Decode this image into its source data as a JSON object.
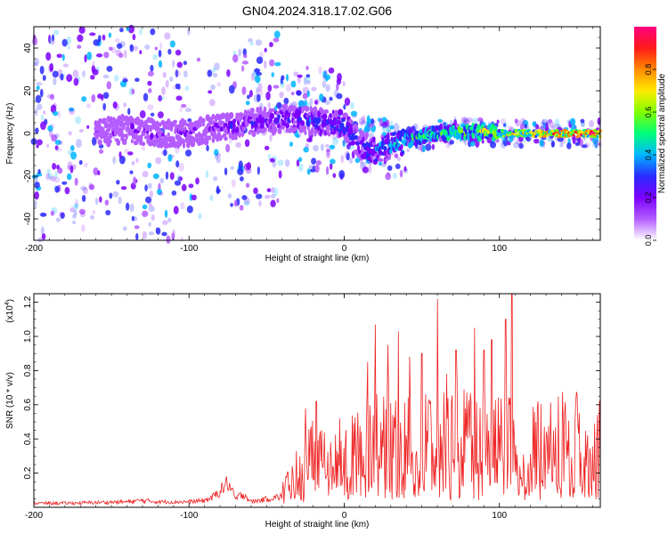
{
  "title": "GN04.2024.318.17.02.G06",
  "colors": {
    "snr_line": "#ee2222",
    "colormap": [
      "#ffffff",
      "#b45cff",
      "#7c00ff",
      "#2a2aff",
      "#00b6ff",
      "#00ff7a",
      "#7fff00",
      "#ffea00",
      "#ff8a00",
      "#ff1a1a",
      "#ff007f"
    ]
  },
  "chart_data": [
    {
      "type": "heatmap",
      "title": "GN04.2024.318.17.02.G06",
      "xlabel": "Height of straight line (km)",
      "ylabel": "Frequency (Hz)",
      "xlim": [
        -200,
        165
      ],
      "ylim": [
        -50,
        50
      ],
      "x_ticks": [
        -200,
        -100,
        0,
        100
      ],
      "x_tick_labels": [
        "-200",
        "-100",
        "0",
        "100"
      ],
      "y_ticks": [
        -40,
        -20,
        0,
        20,
        40
      ],
      "y_tick_labels": [
        "-40",
        "-20",
        "0",
        "20",
        "40"
      ],
      "colorbar": {
        "label": "Normalized spectral amplitude",
        "range": [
          0,
          1
        ],
        "ticks": [
          0.0,
          0.2,
          0.4,
          0.6,
          0.8
        ],
        "tick_labels": [
          "0.0",
          "0.2",
          "0.4",
          "0.6",
          "0.8"
        ]
      },
      "ridge": {
        "x": [
          -160,
          -140,
          -120,
          -100,
          -80,
          -60,
          -40,
          -20,
          0,
          10,
          20,
          30,
          40,
          60,
          80,
          100,
          120,
          140,
          165
        ],
        "frequency": [
          0,
          2,
          0,
          0,
          3,
          5,
          7,
          6,
          4,
          -5,
          -8,
          -6,
          -3,
          0,
          1,
          0,
          0,
          0,
          0
        ],
        "amplitude": [
          0.12,
          0.2,
          0.18,
          0.2,
          0.22,
          0.25,
          0.28,
          0.32,
          0.35,
          0.3,
          0.38,
          0.45,
          0.5,
          0.55,
          0.6,
          0.65,
          0.75,
          0.88,
          0.95
        ]
      }
    },
    {
      "type": "line",
      "xlabel": "Height of straight line (km)",
      "ylabel": "SNR (10 * v/v)",
      "y_multiplier_label": "(x10",
      "y_multiplier_exp": "4",
      "xlim": [
        -200,
        165
      ],
      "ylim": [
        0,
        1.25
      ],
      "x_ticks": [
        -200,
        -100,
        0,
        100
      ],
      "x_tick_labels": [
        "-200",
        "-100",
        "0",
        "100"
      ],
      "y_ticks": [
        0.2,
        0.4,
        0.6,
        0.8,
        1.0,
        1.2
      ],
      "y_tick_labels": [
        "0.2",
        "0.4",
        "0.6",
        "0.8",
        "1.0",
        "1.2"
      ],
      "series": [
        {
          "x": [
            -200,
            -180,
            -160,
            -140,
            -130,
            -120,
            -100,
            -90,
            -85,
            -80,
            -75,
            -70,
            -65,
            -60,
            -50,
            -40,
            -30,
            -20,
            -10,
            0,
            10,
            20,
            30,
            40,
            50,
            60,
            70,
            80,
            90,
            100,
            105,
            108,
            112,
            120,
            130,
            140,
            150,
            160,
            165
          ],
          "y": [
            0.03,
            0.03,
            0.035,
            0.04,
            0.05,
            0.04,
            0.04,
            0.05,
            0.07,
            0.12,
            0.18,
            0.06,
            0.1,
            0.04,
            0.06,
            0.08,
            0.25,
            0.3,
            0.28,
            0.32,
            0.35,
            0.45,
            0.4,
            0.38,
            0.42,
            0.4,
            0.45,
            0.4,
            0.38,
            0.42,
            0.5,
            0.6,
            0.35,
            0.35,
            0.4,
            0.42,
            0.4,
            0.38,
            0.4
          ],
          "peaks": [
            {
              "x": -25,
              "y": 0.58
            },
            {
              "x": -18,
              "y": 0.62
            },
            {
              "x": 15,
              "y": 0.85
            },
            {
              "x": 20,
              "y": 1.07
            },
            {
              "x": 28,
              "y": 0.95
            },
            {
              "x": 35,
              "y": 1.03
            },
            {
              "x": 42,
              "y": 0.88
            },
            {
              "x": 50,
              "y": 0.9
            },
            {
              "x": 60,
              "y": 1.22
            },
            {
              "x": 66,
              "y": 0.78
            },
            {
              "x": 72,
              "y": 0.92
            },
            {
              "x": 84,
              "y": 1.05
            },
            {
              "x": 90,
              "y": 0.92
            },
            {
              "x": 95,
              "y": 0.98
            },
            {
              "x": 104,
              "y": 1.1
            },
            {
              "x": 108,
              "y": 1.25
            },
            {
              "x": 125,
              "y": 0.62
            },
            {
              "x": 150,
              "y": 0.66
            }
          ]
        }
      ]
    }
  ]
}
